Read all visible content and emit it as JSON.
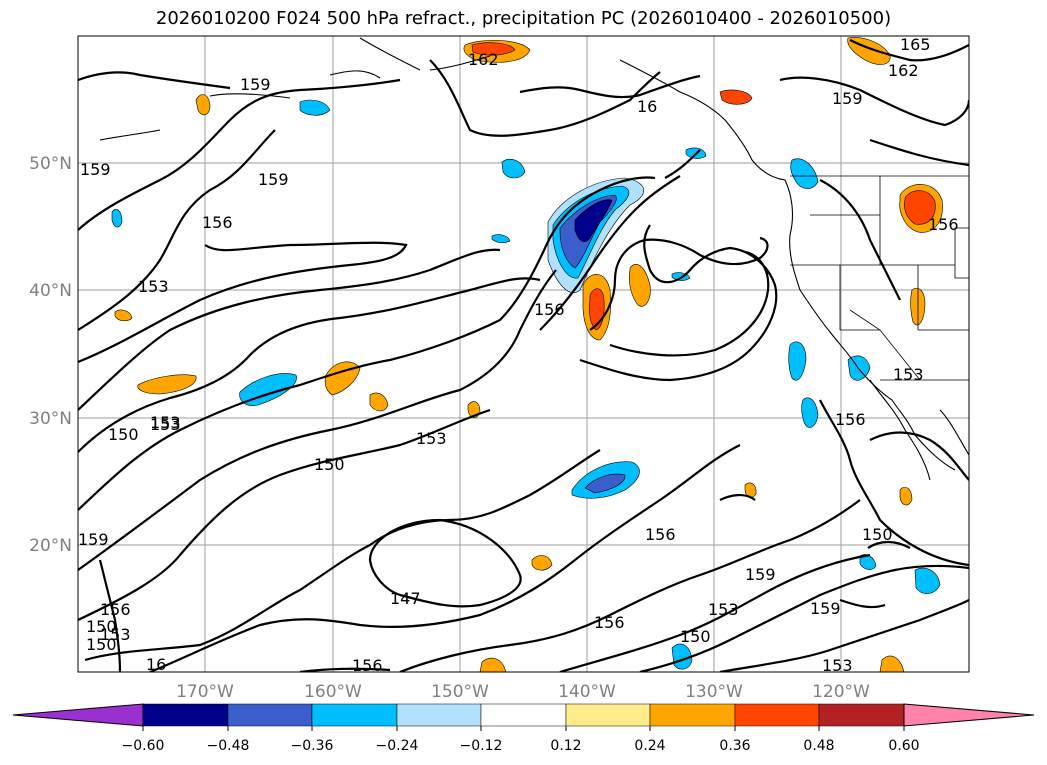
{
  "title": "2026010200 F024 500 hPa refract., precipitation PC (2026010400 - 2026010500)",
  "lat_ticks": [
    "50°N",
    "40°N",
    "30°N",
    "20°N"
  ],
  "lon_ticks": [
    "170°W",
    "160°W",
    "150°W",
    "140°W",
    "130°W",
    "120°W"
  ],
  "contour_labels": [
    "162",
    "165",
    "162",
    "159",
    "159",
    "16",
    "159",
    "156",
    "153",
    "156",
    "159",
    "156",
    "153",
    "150",
    "153",
    "150",
    "153",
    "150",
    "156",
    "147",
    "156",
    "159",
    "153",
    "150",
    "159",
    "156",
    "153",
    "150",
    "156",
    "159",
    "153",
    "150",
    "16",
    "156",
    "153"
  ],
  "colorbar": {
    "ticks": [
      "−0.60",
      "−0.48",
      "−0.36",
      "−0.24",
      "−0.12",
      "0.12",
      "0.24",
      "0.36",
      "0.48",
      "0.60"
    ],
    "colors": [
      "#9b30d0",
      "#00008b",
      "#3a5fcd",
      "#00bfff",
      "#b0e2ff",
      "#ffffff",
      "#ffec8b",
      "#ffa500",
      "#ff4500",
      "#b22222",
      "#ff82ab"
    ]
  },
  "precip_colors": {
    "neg_dark": "#00008b",
    "neg_mid": "#3a5fcd",
    "neg": "#00bfff",
    "neg_light": "#b0e2ff",
    "pos_light": "#ffec8b",
    "pos": "#ffa500",
    "pos_mid": "#ff4500",
    "pos_dark": "#b22222"
  }
}
